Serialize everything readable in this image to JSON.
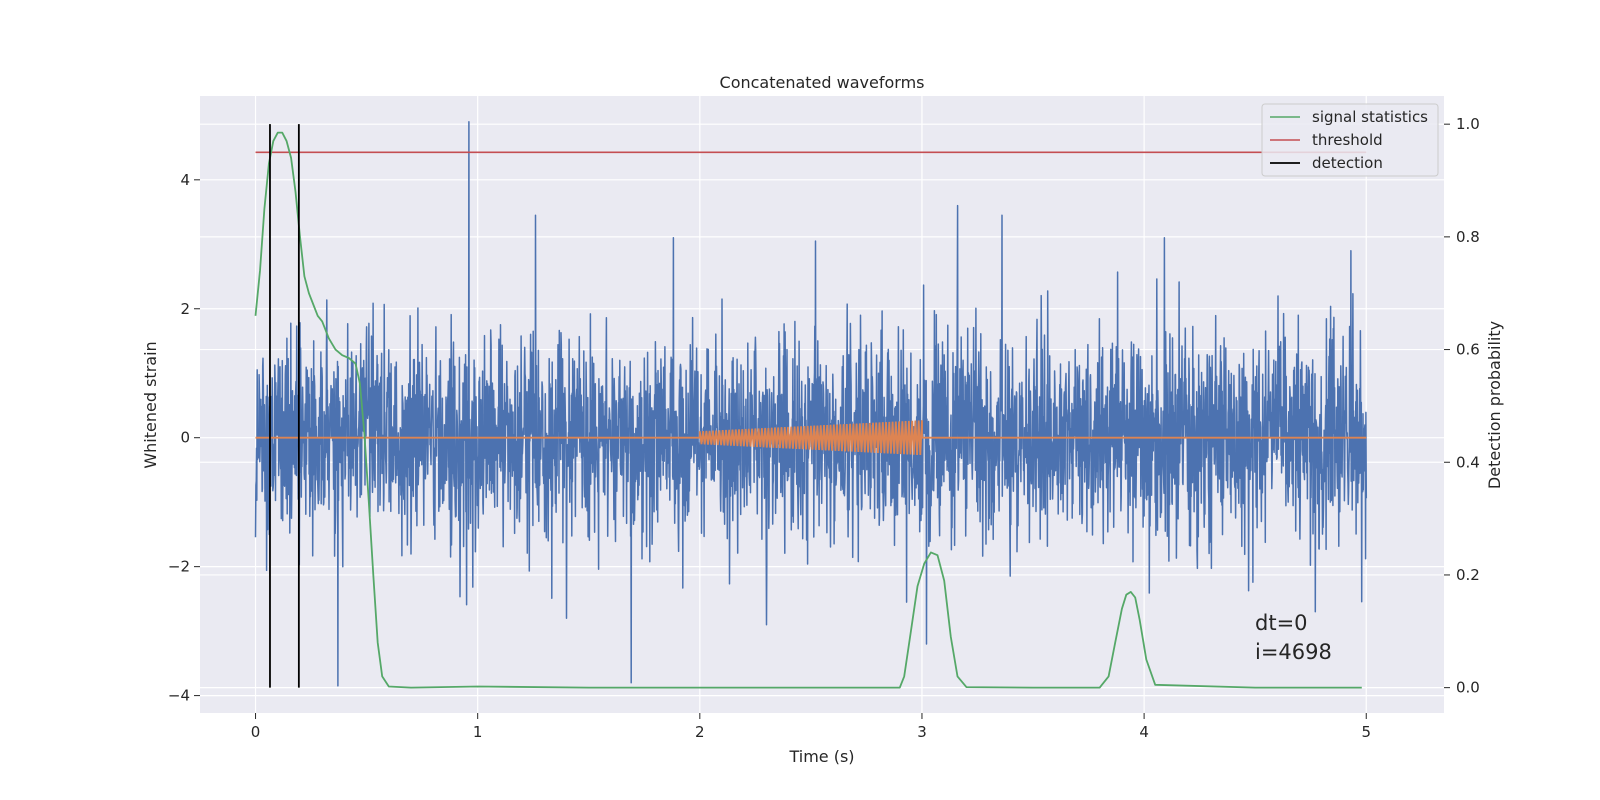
{
  "chart_data": {
    "type": "line",
    "title": "Concatenated waveforms",
    "xlabel": "Time (s)",
    "ylabel": "Whitened strain",
    "ylabel_right": "Detection probability",
    "xlim": [
      -0.25,
      5.35
    ],
    "ylim": [
      -4.27,
      5.3
    ],
    "ylim_right": [
      -0.045,
      1.05
    ],
    "xticks": [
      0,
      1,
      2,
      3,
      4,
      5
    ],
    "yticks": [
      -4,
      -2,
      0,
      2,
      4
    ],
    "yticks_right": [
      0.0,
      0.2,
      0.4,
      0.6,
      0.8,
      1.0
    ],
    "grid": true,
    "legend_position": "top-right",
    "colors": {
      "background": "#eaeaf2",
      "grid": "#ffffff",
      "strain": "#4c72b0",
      "injection": "#dd8452",
      "statistics": "#55a868",
      "threshold": "#c44e52",
      "detection": "#000000"
    },
    "series": [
      {
        "name": "",
        "axis": "left",
        "kind": "noise",
        "x_range": [
          0,
          5
        ],
        "typical_amplitude": 1.35,
        "peak_spikes": [
          {
            "x": 0.96,
            "y": 4.9
          },
          {
            "x": 0.37,
            "y": -3.85
          },
          {
            "x": 1.69,
            "y": -3.8
          },
          {
            "x": 1.26,
            "y": 3.45
          },
          {
            "x": 3.02,
            "y": -3.2
          },
          {
            "x": 3.16,
            "y": 3.6
          },
          {
            "x": 3.36,
            "y": 3.45
          },
          {
            "x": 1.88,
            "y": 3.1
          },
          {
            "x": 2.52,
            "y": 3.05
          },
          {
            "x": 4.09,
            "y": 3.1
          },
          {
            "x": 4.93,
            "y": 2.9
          },
          {
            "x": 4.77,
            "y": -2.7
          },
          {
            "x": 2.93,
            "y": -2.55
          },
          {
            "x": 1.4,
            "y": -2.8
          },
          {
            "x": 2.3,
            "y": -2.9
          }
        ]
      },
      {
        "name": "",
        "axis": "left",
        "kind": "chirp",
        "x_range": [
          2.0,
          3.0
        ],
        "amplitude_start": 0.1,
        "amplitude_end": 0.27
      },
      {
        "name": "signal statistics",
        "axis": "right",
        "x": [
          0,
          0.02,
          0.04,
          0.06,
          0.08,
          0.1,
          0.12,
          0.14,
          0.16,
          0.18,
          0.2,
          0.22,
          0.24,
          0.26,
          0.28,
          0.3,
          0.33,
          0.36,
          0.39,
          0.42,
          0.45,
          0.47,
          0.49,
          0.51,
          0.53,
          0.55,
          0.57,
          0.6,
          0.7,
          1.0,
          1.5,
          2.0,
          2.9,
          2.92,
          2.95,
          2.98,
          3.01,
          3.04,
          3.07,
          3.1,
          3.13,
          3.16,
          3.2,
          3.5,
          3.8,
          3.84,
          3.87,
          3.9,
          3.92,
          3.94,
          3.96,
          3.98,
          4.01,
          4.05,
          4.5,
          4.98
        ],
        "y": [
          0.66,
          0.74,
          0.85,
          0.93,
          0.97,
          0.985,
          0.985,
          0.97,
          0.94,
          0.88,
          0.8,
          0.73,
          0.7,
          0.68,
          0.66,
          0.65,
          0.62,
          0.6,
          0.59,
          0.585,
          0.575,
          0.54,
          0.45,
          0.33,
          0.2,
          0.08,
          0.02,
          0.002,
          0.0,
          0.002,
          0.0,
          0.0,
          0.0,
          0.02,
          0.1,
          0.18,
          0.22,
          0.24,
          0.235,
          0.19,
          0.09,
          0.02,
          0.001,
          0.0,
          0.0,
          0.02,
          0.08,
          0.14,
          0.165,
          0.17,
          0.16,
          0.12,
          0.05,
          0.005,
          0.0,
          0.0
        ]
      },
      {
        "name": "threshold",
        "axis": "right",
        "x": [
          0,
          5
        ],
        "y": [
          0.95,
          0.95
        ]
      },
      {
        "name": "detection",
        "axis": "right",
        "x_positions": [
          0.065,
          0.195
        ],
        "y_range": [
          0.0,
          1.0
        ]
      }
    ],
    "annotations": [
      "dt=0",
      "i=4698"
    ]
  }
}
